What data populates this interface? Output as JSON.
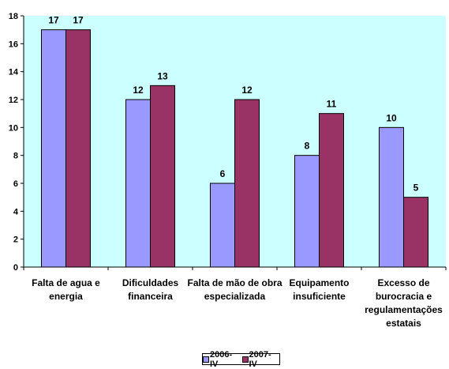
{
  "chart_data": {
    "type": "bar",
    "categories": [
      [
        "Falta de agua e",
        "energia"
      ],
      [
        "Dificuldades",
        "financeira"
      ],
      [
        "Falta de mão de obra",
        "especializada"
      ],
      [
        "Equipamento",
        "insuficiente"
      ],
      [
        "Excesso de",
        "burocracia e",
        "regulamentações",
        "estatais"
      ]
    ],
    "series": [
      {
        "name": "2006-IV",
        "values": [
          17,
          12,
          6,
          8,
          10
        ],
        "color": "#9999ff"
      },
      {
        "name": "2007-IV",
        "values": [
          17,
          13,
          12,
          11,
          5
        ],
        "color": "#993366"
      }
    ],
    "ylim": [
      0,
      18
    ],
    "yticks": [
      0,
      2,
      4,
      6,
      8,
      10,
      12,
      14,
      16,
      18
    ],
    "plot_background": "#ccffff",
    "grid": false,
    "legend_position": "bottom"
  }
}
